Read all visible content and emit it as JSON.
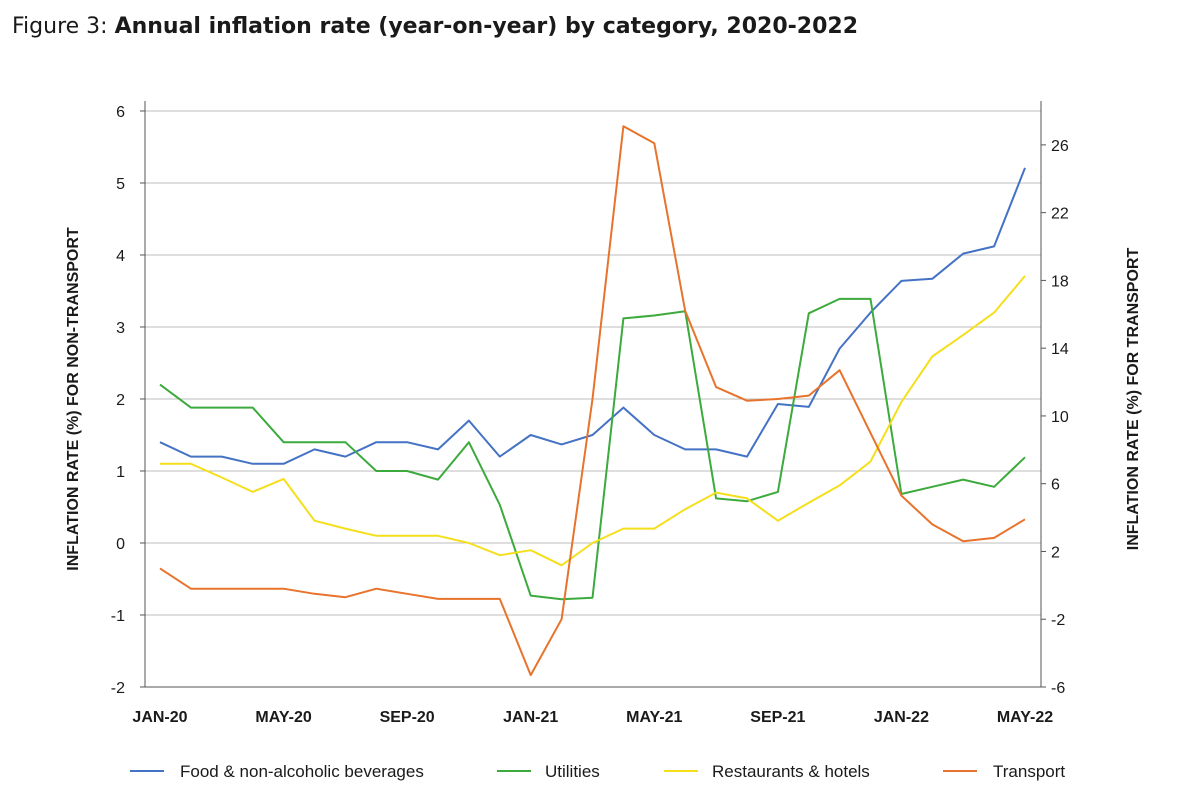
{
  "figure": {
    "prefix": "Figure 3: ",
    "title": "Annual inflation rate (year-on-year) by category, 2020-2022"
  },
  "chart_data": {
    "type": "line",
    "x": [
      "JAN-20",
      "FEB-20",
      "MAR-20",
      "APR-20",
      "MAY-20",
      "JUN-20",
      "JUL-20",
      "AUG-20",
      "SEP-20",
      "OCT-20",
      "NOV-20",
      "DEC-20",
      "JAN-21",
      "FEB-21",
      "MAR-21",
      "APR-21",
      "MAY-21",
      "JUN-21",
      "JUL-21",
      "AUG-21",
      "SEP-21",
      "OCT-21",
      "NOV-21",
      "DEC-21",
      "JAN-22",
      "FEB-22",
      "MAR-22",
      "APR-22",
      "MAY-22"
    ],
    "xticks": [
      "JAN-20",
      "MAY-20",
      "SEP-20",
      "JAN-21",
      "MAY-21",
      "SEP-21",
      "JAN-22",
      "MAY-22"
    ],
    "ylabel_left": "INFLATION RATE (%) FOR NON-TRANSPORT",
    "ylabel_right": "INFLATION RATE (%) FOR TRANSPORT",
    "ylim_left": [
      -2,
      6
    ],
    "yticks_left": [
      "-2",
      "-1",
      "0",
      "1",
      "2",
      "3",
      "4",
      "5",
      "6"
    ],
    "ylim_right": [
      -6,
      28
    ],
    "yticks_right": [
      "-6",
      "-2",
      "2",
      "6",
      "10",
      "14",
      "18",
      "22",
      "26"
    ],
    "grid": "horizontal",
    "legend_position": "bottom",
    "series": [
      {
        "name": "Food & non-alcoholic beverages",
        "axis": "left",
        "color": "#4472c4",
        "values": [
          1.4,
          1.2,
          1.2,
          1.1,
          1.1,
          1.3,
          1.2,
          1.4,
          1.4,
          1.3,
          1.7,
          1.2,
          1.5,
          1.37,
          1.5,
          1.88,
          1.5,
          1.3,
          1.3,
          1.2,
          1.93,
          1.89,
          2.7,
          3.2,
          3.64,
          3.67,
          4.02,
          4.12,
          5.21
        ]
      },
      {
        "name": "Utilities",
        "axis": "left",
        "color": "#3caa3c",
        "values": [
          2.2,
          1.88,
          1.88,
          1.88,
          1.4,
          1.4,
          1.4,
          1.0,
          1.0,
          0.88,
          1.4,
          0.53,
          -0.73,
          -0.78,
          -0.76,
          3.12,
          3.16,
          3.22,
          0.62,
          0.58,
          0.71,
          3.19,
          3.39,
          3.39,
          0.68,
          0.78,
          0.88,
          0.78,
          1.19
        ]
      },
      {
        "name": "Restaurants & hotels",
        "axis": "left",
        "color": "#f5df1d",
        "values": [
          1.1,
          1.1,
          0.91,
          0.71,
          0.89,
          0.31,
          0.2,
          0.1,
          0.1,
          0.1,
          0.0,
          -0.17,
          -0.1,
          -0.31,
          0.0,
          0.2,
          0.2,
          0.47,
          0.7,
          0.62,
          0.31,
          0.56,
          0.8,
          1.13,
          1.96,
          2.59,
          2.89,
          3.2,
          3.71
        ]
      },
      {
        "name": "Transport",
        "axis": "right",
        "color": "#e8732c",
        "values": [
          1.0,
          -0.2,
          -0.2,
          -0.2,
          -0.2,
          -0.5,
          -0.7,
          -0.2,
          -0.5,
          -0.8,
          -0.8,
          -0.8,
          -5.3,
          -2.0,
          11.0,
          27.1,
          26.1,
          16.2,
          11.7,
          10.9,
          11.0,
          11.2,
          12.7,
          9.0,
          5.3,
          3.6,
          2.6,
          2.8,
          3.9
        ]
      }
    ]
  }
}
